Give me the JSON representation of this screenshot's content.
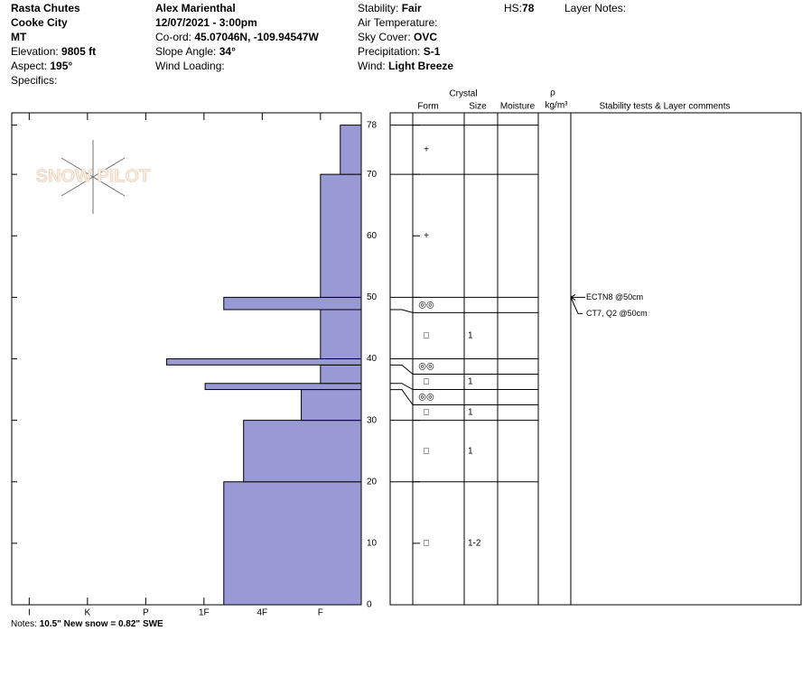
{
  "header": {
    "col1": [
      {
        "value": "Rasta Chutes"
      },
      {
        "value": "Cooke City"
      },
      {
        "value": "MT"
      },
      {
        "label": "Elevation:",
        "value": "9805 ft"
      },
      {
        "label": "Aspect:",
        "value": "195°"
      },
      {
        "label": "Specifics:"
      }
    ],
    "col2": [
      {
        "value": "Alex Marienthal"
      },
      {
        "value": "12/07/2021 - 3:00pm"
      },
      {
        "label": "Co-ord:",
        "value": "45.07046N, -109.94547W"
      },
      {
        "label": "Slope Angle:",
        "value": "34°"
      },
      {
        "label": "Wind Loading:"
      }
    ],
    "col3": [
      {
        "label": "Stability:",
        "value": "Fair"
      },
      {
        "label": "Air Temperature:"
      },
      {
        "label": "Sky Cover:",
        "value": "OVC"
      },
      {
        "label": "Precipitation:",
        "value": "S-1"
      },
      {
        "label": "Wind:",
        "value": "Light Breeze"
      }
    ],
    "hs": {
      "label": "HS:",
      "value": "78"
    },
    "layer_notes": "Layer Notes:"
  },
  "logo": "SNOW PILOT",
  "columns": {
    "crystal": "Crystal",
    "form": "Form",
    "size": "Size",
    "moisture": "Moisture",
    "rho": "ρ",
    "density_unit": "kg/m³",
    "comments": "Stability tests & Layer comments"
  },
  "notes": {
    "label": "Notes:",
    "value": "10.5\" New snow = 0.82\" SWE"
  },
  "chart_data": {
    "type": "bar",
    "color": "#9999d6",
    "xlim": [
      6.3,
      0.3
    ],
    "xticks": [
      {
        "value": 6,
        "label": "I"
      },
      {
        "value": 5,
        "label": "K"
      },
      {
        "value": 4,
        "label": "P"
      },
      {
        "value": 3,
        "label": "1F"
      },
      {
        "value": 2,
        "label": "4F"
      },
      {
        "value": 1,
        "label": "F"
      }
    ],
    "ylim": [
      0,
      80
    ],
    "yticks": [
      0,
      10,
      20,
      30,
      40,
      50,
      60,
      70,
      78
    ],
    "layers": [
      {
        "bottom": 0,
        "top": 20,
        "hardness": 2.66,
        "form": "□",
        "size": "1-2"
      },
      {
        "bottom": 20,
        "top": 30,
        "hardness": 2.32,
        "form": "□",
        "size": "1"
      },
      {
        "bottom": 30,
        "top": 35,
        "hardness": 1.33,
        "form": "□",
        "size": "1"
      },
      {
        "bottom": 35,
        "top": 36,
        "hardness": 2.98,
        "form": "◎◎"
      },
      {
        "bottom": 36,
        "top": 39,
        "hardness": 1,
        "form": "□",
        "size": "1"
      },
      {
        "bottom": 39,
        "top": 40,
        "hardness": 3.64,
        "form": "◎◎"
      },
      {
        "bottom": 40,
        "top": 48,
        "hardness": 1,
        "form": "□",
        "size": "1"
      },
      {
        "bottom": 48,
        "top": 50,
        "hardness": 2.66,
        "form": "◎◎"
      },
      {
        "bottom": 50,
        "top": 70,
        "hardness": 1,
        "form": "+"
      },
      {
        "bottom": 70,
        "top": 78,
        "hardness": 0.66,
        "form": "+"
      }
    ],
    "tests": [
      {
        "text": "ECTN8 @50cm",
        "height": 50
      },
      {
        "text": "CT7, Q2 @50cm",
        "height": 50
      }
    ]
  }
}
